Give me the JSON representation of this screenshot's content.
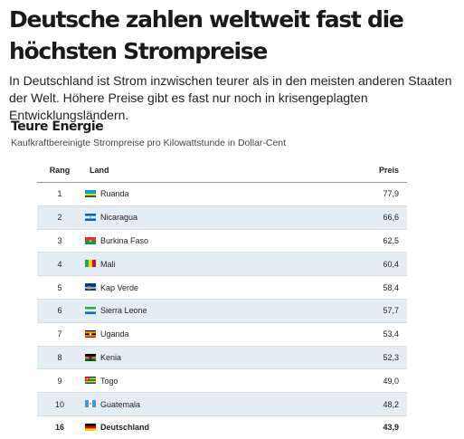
{
  "article": {
    "headline": "Deutsche zahlen weltweit fast die höchsten Strompreise",
    "lead": "In Deutschland ist Strom inzwischen teurer als in den meisten anderen Staaten der Welt. Höhere Preise gibt es fast nur noch in krisengeplagten Entwicklungsländern."
  },
  "chart_data": {
    "type": "table",
    "title": "Teure Energie",
    "subtitle": "Kaufkraftbereinigte Strompreise pro Kilowattstunde in Dollar-Cent",
    "columns": [
      "Rang",
      "Land",
      "Preis"
    ],
    "rows": [
      {
        "rank": "1",
        "country": "Ruanda",
        "price": "77,9",
        "flag": "rwanda-flag"
      },
      {
        "rank": "2",
        "country": "Nicaragua",
        "price": "66,6",
        "flag": "nicaragua-flag"
      },
      {
        "rank": "3",
        "country": "Burkina Faso",
        "price": "62,5",
        "flag": "burkina-faso-flag"
      },
      {
        "rank": "4",
        "country": "Mali",
        "price": "60,4",
        "flag": "mali-flag"
      },
      {
        "rank": "5",
        "country": "Kap Verde",
        "price": "58,4",
        "flag": "cape-verde-flag"
      },
      {
        "rank": "6",
        "country": "Sierra Leone",
        "price": "57,7",
        "flag": "sierra-leone-flag"
      },
      {
        "rank": "7",
        "country": "Uganda",
        "price": "53,4",
        "flag": "uganda-flag"
      },
      {
        "rank": "8",
        "country": "Kenia",
        "price": "52,3",
        "flag": "kenya-flag"
      },
      {
        "rank": "9",
        "country": "Togo",
        "price": "49,0",
        "flag": "togo-flag"
      },
      {
        "rank": "10",
        "country": "Guatemala",
        "price": "48,2",
        "flag": "guatemala-flag"
      },
      {
        "rank": "16",
        "country": "Deutschland",
        "price": "43,9",
        "flag": "germany-flag",
        "highlighted": true
      }
    ],
    "row_stripe_color": "#e4ecf4"
  }
}
